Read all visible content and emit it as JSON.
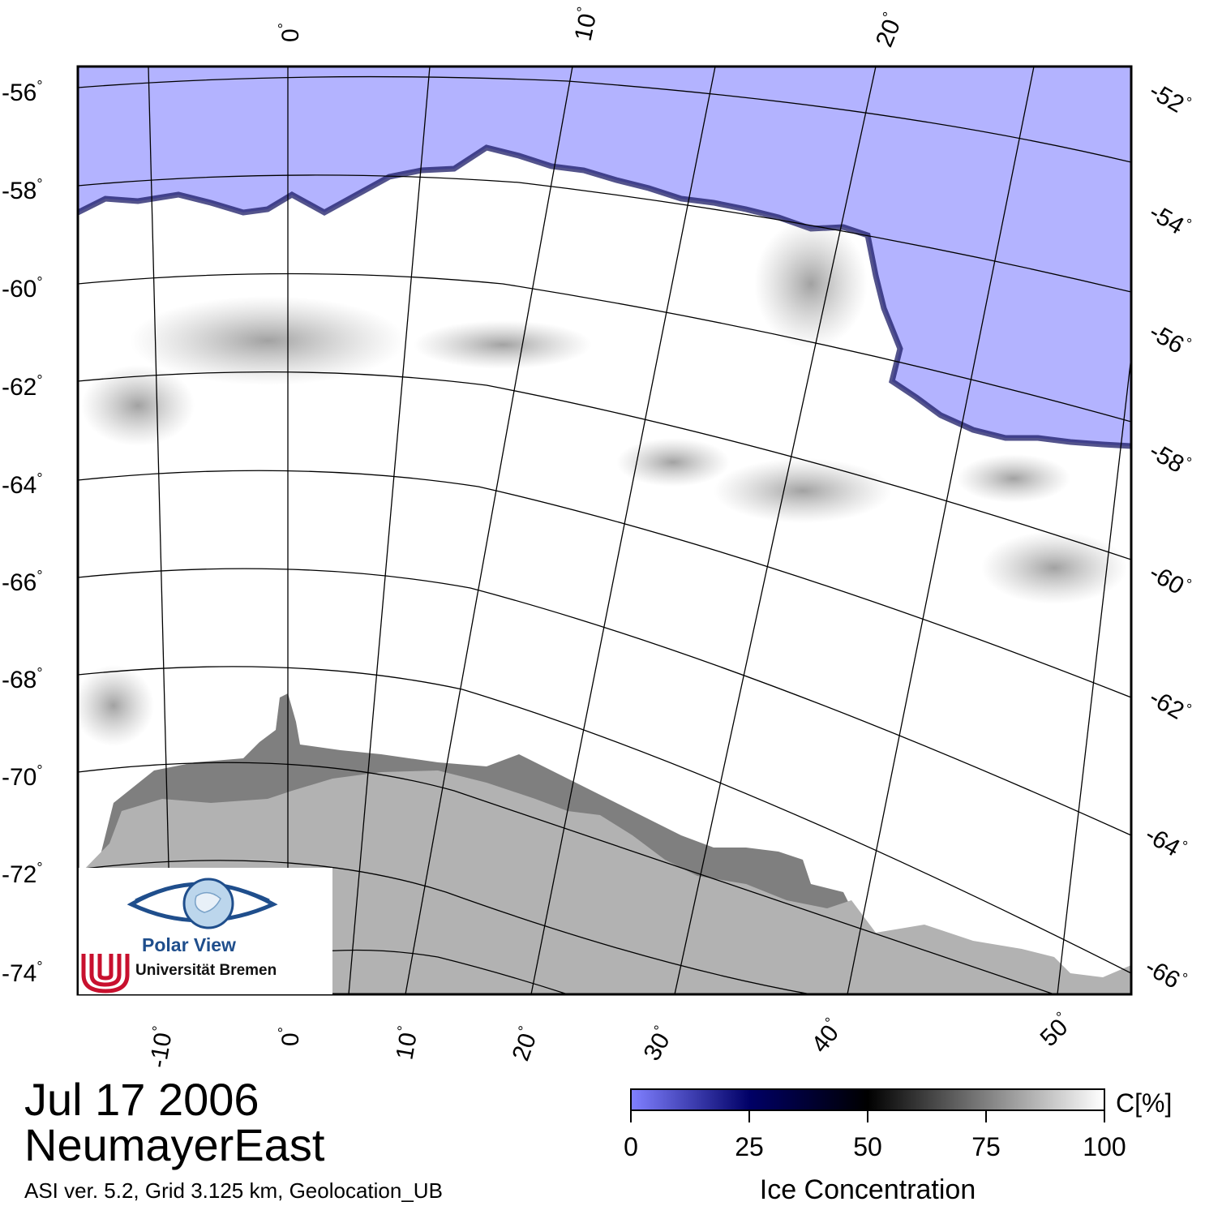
{
  "map": {
    "colors": {
      "open_water": "#b3b3ff",
      "ice_shelf": "#7f7f7f",
      "land": "#b2b2b2",
      "sea_ice": "#ffffff",
      "grid": "#000000"
    },
    "left_lat_labels": [
      "-56",
      "-58",
      "-60",
      "-62",
      "-64",
      "-66",
      "-68",
      "-70",
      "-72",
      "-74"
    ],
    "right_lat_labels": [
      "-52",
      "-54",
      "-56",
      "-58",
      "-60",
      "-62",
      "-64",
      "-66"
    ],
    "top_lon_labels": [
      "0",
      "10",
      "20"
    ],
    "bottom_lon_labels": [
      "-10",
      "0",
      "10",
      "20",
      "30",
      "40",
      "50"
    ],
    "degree_symbol": "°"
  },
  "logo": {
    "name": "Polar View",
    "institution": "Universität Bremen"
  },
  "caption": {
    "date": "Jul 17 2006",
    "region": "NeumayerEast",
    "product": "ASI ver. 5.2,  Grid 3.125 km, Geolocation_UB"
  },
  "colorbar": {
    "title": "Ice Concentration",
    "unit": "C[%]",
    "ticks": [
      "0",
      "25",
      "50",
      "75",
      "100"
    ],
    "stops": [
      "#8080ff",
      "#000066",
      "#000000",
      "#7f7f7f",
      "#ffffff"
    ]
  }
}
